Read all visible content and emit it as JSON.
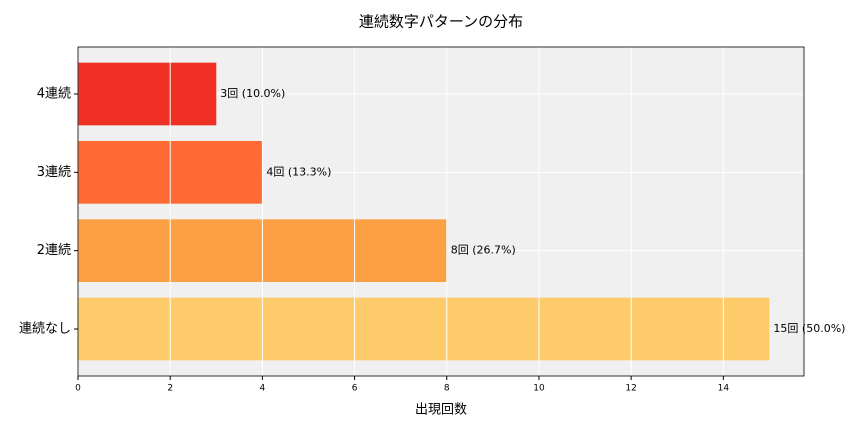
{
  "chart_data": {
    "type": "barh",
    "title": "連続数字パターンの分布",
    "xlabel": "出現回数",
    "categories": [
      "4連続",
      "3連続",
      "2連続",
      "連続なし"
    ],
    "values": [
      3,
      4,
      8,
      15
    ],
    "value_labels": [
      "3回 (10.0%)",
      "4回 (13.3%)",
      "8回 (26.7%)",
      "15回 (50.0%)"
    ],
    "colors": [
      "#f03024",
      "#fd6a33",
      "#fda044",
      "#fecb6a"
    ],
    "xlim": [
      0,
      15.75
    ],
    "xticks": [
      0,
      2,
      4,
      6,
      8,
      10,
      12,
      14
    ],
    "grid": true
  }
}
